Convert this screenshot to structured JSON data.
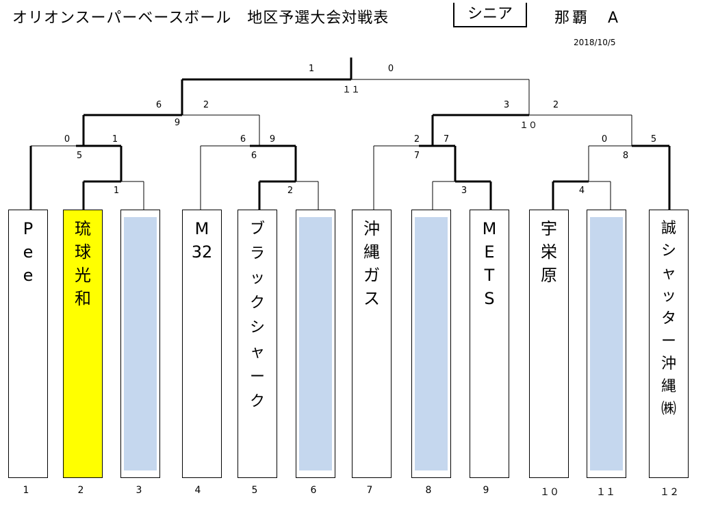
{
  "header": {
    "title": "オリオンスーパーベースボール　地区予選大会対戦表",
    "division": "シニア",
    "region": "那覇　A",
    "date": "2018/10/5"
  },
  "teams": [
    {
      "number": "1",
      "name": "P\ne\ne",
      "highlight": false,
      "bye": false
    },
    {
      "number": "2",
      "name": "琉\n球\n光\n和",
      "highlight": true,
      "bye": false
    },
    {
      "number": "3",
      "name": "",
      "highlight": false,
      "bye": true
    },
    {
      "number": "4",
      "name": "M\n32",
      "highlight": false,
      "bye": false
    },
    {
      "number": "5",
      "name": "ブ\nラ\nッ\nク\nシ\nャ\nー\nク",
      "highlight": false,
      "bye": false
    },
    {
      "number": "6",
      "name": "",
      "highlight": false,
      "bye": true
    },
    {
      "number": "7",
      "name": "沖\n縄\nガ\nス",
      "highlight": false,
      "bye": false
    },
    {
      "number": "8",
      "name": "",
      "highlight": false,
      "bye": true
    },
    {
      "number": "9",
      "name": "M\nE\nT\nS",
      "highlight": false,
      "bye": false
    },
    {
      "number": "１０",
      "name": "宇\n栄\n原",
      "highlight": false,
      "bye": false
    },
    {
      "number": "１１",
      "name": "",
      "highlight": false,
      "bye": true
    },
    {
      "number": "１２",
      "name": "誠\nシ\nャ\nッ\nタ\nー\n沖\n縄\n㈱",
      "highlight": false,
      "bye": false
    }
  ],
  "scores": {
    "r1_2v3": "1",
    "r1_5v6": "2",
    "r1_8v9": "3",
    "r1_10v11": "4",
    "m_1v2": {
      "left": "0",
      "right": "1",
      "game": "5"
    },
    "m_4v5": {
      "left": "6",
      "right": "9",
      "game": "6"
    },
    "m_7v8": {
      "left": "2",
      "right": "7",
      "game": "7"
    },
    "m_10v12": {
      "left": "0",
      "right": "5",
      "game": "8"
    },
    "semi_left": {
      "left": "6",
      "right": "2",
      "game": "9"
    },
    "semi_right": {
      "left": "3",
      "right": "2",
      "game": "１０"
    },
    "final": {
      "left": "1",
      "right": "0",
      "game": "１１"
    }
  }
}
